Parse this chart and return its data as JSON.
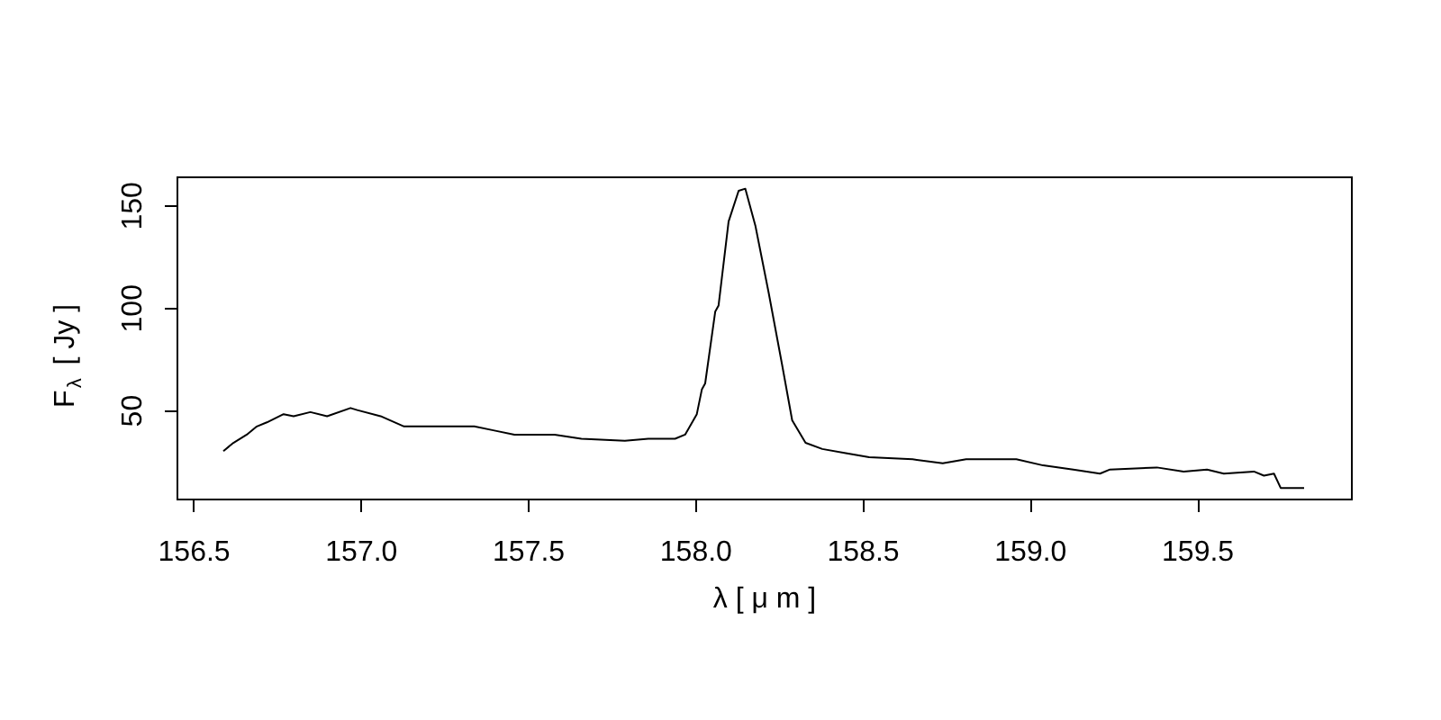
{
  "chart_data": {
    "type": "line",
    "xlabel": "λ [ μ m ]",
    "ylabel": "F$_{λ}$ [ Jy ]",
    "xlim": [
      156.45,
      159.96
    ],
    "ylim": [
      6.8,
      164
    ],
    "xticks": [
      {
        "value": 156.5,
        "label": "156.5"
      },
      {
        "value": 157,
        "label": "157.0"
      },
      {
        "value": 157.5,
        "label": "157.5"
      },
      {
        "value": 158,
        "label": "158.0"
      },
      {
        "value": 158.5,
        "label": "158.5"
      },
      {
        "value": 159,
        "label": "159.0"
      },
      {
        "value": 159.5,
        "label": "159.5"
      }
    ],
    "yticks": [
      50,
      100,
      150
    ],
    "grid": false,
    "marker": "none",
    "line_style": "solid",
    "x": [
      156.59,
      156.62,
      156.66,
      156.69,
      156.72,
      156.77,
      156.8,
      156.85,
      156.9,
      156.97,
      156.99,
      157.06,
      157.13,
      157.18,
      157.27,
      157.34,
      157.4,
      157.46,
      157.58,
      157.66,
      157.79,
      157.86,
      157.94,
      157.97,
      158.005,
      158.02,
      158.03,
      158.06,
      158.07,
      158.1,
      158.13,
      158.15,
      158.18,
      158.22,
      158.26,
      158.29,
      158.33,
      158.38,
      158.45,
      158.52,
      158.65,
      158.74,
      158.81,
      158.96,
      159.04,
      159.13,
      159.21,
      159.24,
      159.38,
      159.46,
      159.53,
      159.58,
      159.67,
      159.7,
      159.73,
      159.75,
      159.82
    ],
    "series": [
      {
        "color": "#000000",
        "values": [
          30,
          34,
          38,
          42,
          44,
          48,
          47,
          49,
          47,
          51,
          50,
          47,
          42,
          42,
          42,
          42,
          40,
          38,
          38,
          36,
          35,
          36,
          36,
          38,
          48,
          60,
          63,
          98,
          101,
          142,
          157,
          158,
          140,
          107,
          72,
          45,
          34,
          31,
          29,
          27,
          26,
          24,
          26,
          26,
          23,
          21,
          19,
          21,
          22,
          20,
          21,
          19,
          20,
          18,
          19,
          12,
          12
        ]
      }
    ]
  }
}
